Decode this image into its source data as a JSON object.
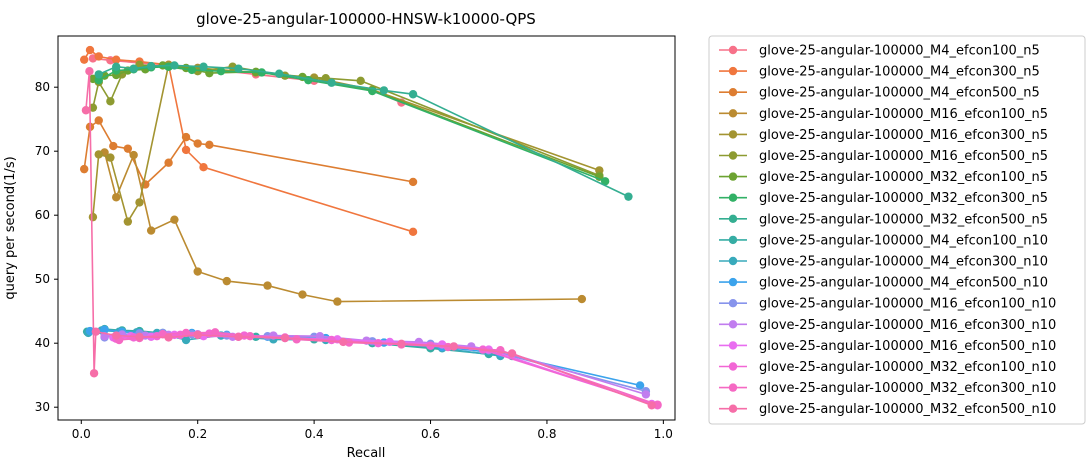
{
  "chart_data": {
    "type": "line",
    "title": "glove-25-angular-100000-HNSW-k10000-QPS",
    "xlabel": "Recall",
    "ylabel": "query per second(1/s)",
    "xlim": [
      -0.04,
      1.02
    ],
    "ylim": [
      28.0,
      88.0
    ],
    "xticks": [
      0.0,
      0.2,
      0.4,
      0.6,
      0.8,
      1.0
    ],
    "xtick_labels": [
      "0.0",
      "0.2",
      "0.4",
      "0.6",
      "0.8",
      "1.0"
    ],
    "yticks": [
      30,
      40,
      50,
      60,
      70,
      80
    ],
    "ytick_labels": [
      "30",
      "40",
      "50",
      "60",
      "70",
      "80"
    ],
    "grid": false,
    "legend_position": "outside-right",
    "series": [
      {
        "name": "glove-25-angular-100000_M4_efcon100_n5",
        "color": "#f77189",
        "x": [
          0.02,
          0.05,
          0.1,
          0.15,
          0.2,
          0.3,
          0.4,
          0.5,
          0.55
        ],
        "y": [
          84.5,
          84.2,
          83.8,
          83.5,
          83.0,
          82.0,
          81.0,
          79.5,
          77.6
        ]
      },
      {
        "name": "glove-25-angular-100000_M4_efcon300_n5",
        "color": "#f0763e",
        "x": [
          0.005,
          0.015,
          0.03,
          0.06,
          0.1,
          0.15,
          0.18,
          0.21,
          0.57
        ],
        "y": [
          84.3,
          85.8,
          84.8,
          84.3,
          84.0,
          83.5,
          70.2,
          67.5,
          57.4
        ]
      },
      {
        "name": "glove-25-angular-100000_M4_efcon500_n5",
        "color": "#dd7d31",
        "x": [
          0.005,
          0.015,
          0.03,
          0.055,
          0.08,
          0.11,
          0.15,
          0.18,
          0.2,
          0.22,
          0.57
        ],
        "y": [
          67.2,
          73.8,
          74.8,
          70.8,
          70.4,
          64.8,
          68.2,
          72.2,
          71.2,
          71.0,
          65.2
        ]
      },
      {
        "name": "glove-25-angular-100000_M16_efcon100_n5",
        "color": "#bb8b31",
        "x": [
          0.04,
          0.06,
          0.09,
          0.12,
          0.16,
          0.2,
          0.25,
          0.32,
          0.38,
          0.44,
          0.86
        ],
        "y": [
          69.8,
          62.8,
          69.4,
          57.6,
          59.3,
          51.2,
          49.7,
          49.0,
          47.6,
          46.5,
          46.9
        ]
      },
      {
        "name": "glove-25-angular-100000_M16_efcon300_n5",
        "color": "#a39431",
        "x": [
          0.02,
          0.03,
          0.05,
          0.08,
          0.1,
          0.15,
          0.2,
          0.3,
          0.4,
          0.5,
          0.89
        ],
        "y": [
          59.7,
          69.5,
          69.0,
          59.0,
          62.0,
          83.5,
          83.0,
          82.3,
          81.5,
          79.6,
          67.0
        ]
      },
      {
        "name": "glove-25-angular-100000_M16_efcon500_n5",
        "color": "#8d9b31",
        "x": [
          0.02,
          0.03,
          0.05,
          0.07,
          0.1,
          0.15,
          0.2,
          0.26,
          0.35,
          0.42,
          0.48,
          0.89
        ],
        "y": [
          76.8,
          80.8,
          77.8,
          82.0,
          83.5,
          83.2,
          82.5,
          83.2,
          81.8,
          81.4,
          81.0,
          66.2
        ]
      },
      {
        "name": "glove-25-angular-100000_M32_efcon100_n5",
        "color": "#6ca331",
        "x": [
          0.02,
          0.04,
          0.06,
          0.08,
          0.11,
          0.14,
          0.18,
          0.22,
          0.3,
          0.38,
          0.5,
          0.89
        ],
        "y": [
          81.3,
          81.8,
          81.9,
          82.6,
          82.8,
          83.4,
          83.0,
          82.2,
          82.4,
          81.6,
          79.5,
          66.0
        ]
      },
      {
        "name": "glove-25-angular-100000_M32_efcon300_n5",
        "color": "#32b166",
        "x": [
          0.03,
          0.06,
          0.09,
          0.12,
          0.15,
          0.19,
          0.24,
          0.31,
          0.39,
          0.5,
          0.9
        ],
        "y": [
          81.1,
          82.6,
          82.8,
          83.1,
          83.2,
          82.7,
          82.5,
          82.3,
          81.1,
          79.4,
          65.3
        ]
      },
      {
        "name": "glove-25-angular-100000_M32_efcon500_n5",
        "color": "#34ae91",
        "x": [
          0.03,
          0.06,
          0.09,
          0.12,
          0.16,
          0.21,
          0.27,
          0.34,
          0.43,
          0.52,
          0.57,
          0.94
        ],
        "y": [
          82.0,
          83.2,
          82.9,
          83.3,
          83.4,
          83.2,
          82.9,
          82.1,
          80.7,
          79.5,
          78.9,
          62.9
        ]
      },
      {
        "name": "glove-25-angular-100000_M4_efcon100_n10",
        "color": "#36ada4",
        "x": [
          0.01,
          0.04,
          0.07,
          0.1,
          0.14,
          0.18,
          0.24,
          0.3,
          0.4,
          0.5,
          0.6,
          0.7,
          0.74
        ],
        "y": [
          41.8,
          42.2,
          42.0,
          41.9,
          41.6,
          41.4,
          41.2,
          41.0,
          40.6,
          40.0,
          39.2,
          38.3,
          38.0
        ]
      },
      {
        "name": "glove-25-angular-100000_M4_efcon300_n10",
        "color": "#38aabb",
        "x": [
          0.012,
          0.035,
          0.065,
          0.095,
          0.13,
          0.18,
          0.24,
          0.33,
          0.42,
          0.52,
          0.62,
          0.72
        ],
        "y": [
          41.6,
          42.0,
          41.8,
          41.7,
          41.6,
          40.5,
          41.2,
          40.6,
          40.5,
          40.1,
          39.2,
          38.0
        ]
      },
      {
        "name": "glove-25-angular-100000_M4_efcon500_n10",
        "color": "#3ba3ec",
        "x": [
          0.015,
          0.04,
          0.07,
          0.1,
          0.14,
          0.19,
          0.25,
          0.32,
          0.42,
          0.52,
          0.62,
          0.72,
          0.96
        ],
        "y": [
          41.9,
          42.1,
          41.8,
          41.6,
          41.5,
          41.6,
          41.3,
          41.0,
          40.8,
          40.1,
          39.4,
          38.4,
          33.4
        ]
      },
      {
        "name": "glove-25-angular-100000_M16_efcon100_n10",
        "color": "#8794ec",
        "x": [
          0.04,
          0.07,
          0.1,
          0.14,
          0.19,
          0.25,
          0.32,
          0.4,
          0.5,
          0.6,
          0.7,
          0.97
        ],
        "y": [
          40.9,
          41.4,
          41.5,
          41.6,
          41.4,
          41.2,
          41.1,
          41.0,
          40.3,
          39.9,
          38.9,
          32.5
        ]
      },
      {
        "name": "glove-25-angular-100000_M16_efcon300_n10",
        "color": "#c17def",
        "x": [
          0.04,
          0.07,
          0.11,
          0.15,
          0.2,
          0.26,
          0.33,
          0.41,
          0.49,
          0.58,
          0.67,
          0.74,
          0.97
        ],
        "y": [
          41.1,
          41.3,
          41.2,
          41.3,
          41.4,
          41.0,
          41.2,
          41.1,
          40.4,
          40.2,
          39.5,
          38.3,
          32.0
        ]
      },
      {
        "name": "glove-25-angular-100000_M16_efcon500_n10",
        "color": "#e96df0",
        "x": [
          0.055,
          0.085,
          0.12,
          0.16,
          0.21,
          0.27,
          0.35,
          0.44,
          0.53,
          0.62,
          0.7,
          0.98
        ],
        "y": [
          40.9,
          41.1,
          41.0,
          41.3,
          41.1,
          41.0,
          40.8,
          40.6,
          40.2,
          39.8,
          39.0,
          30.5
        ]
      },
      {
        "name": "glove-25-angular-100000_M32_efcon100_n10",
        "color": "#f266d5",
        "x": [
          0.06,
          0.09,
          0.13,
          0.17,
          0.22,
          0.28,
          0.35,
          0.43,
          0.51,
          0.6,
          0.69,
          0.99
        ],
        "y": [
          40.7,
          40.9,
          41.1,
          41.3,
          41.5,
          41.2,
          40.9,
          40.5,
          40.0,
          39.6,
          39.0,
          30.3
        ]
      },
      {
        "name": "glove-25-angular-100000_M32_efcon300_n10",
        "color": "#f569c3",
        "x": [
          0.065,
          0.1,
          0.14,
          0.18,
          0.23,
          0.29,
          0.37,
          0.46,
          0.55,
          0.63,
          0.72,
          0.99
        ],
        "y": [
          40.5,
          40.8,
          41.4,
          41.6,
          41.7,
          41.1,
          40.6,
          40.1,
          39.8,
          39.4,
          38.9,
          30.4
        ]
      },
      {
        "name": "glove-25-angular-100000_M32_efcon500_n10",
        "color": "#f66ea8",
        "x": [
          0.008,
          0.014,
          0.022,
          0.025,
          0.06,
          0.1,
          0.15,
          0.2,
          0.27,
          0.35,
          0.45,
          0.55,
          0.64,
          0.74,
          0.98
        ],
        "y": [
          76.4,
          82.5,
          35.3,
          41.8,
          41.2,
          41.0,
          40.9,
          41.3,
          41.0,
          40.8,
          40.2,
          39.9,
          39.5,
          38.4,
          30.3
        ]
      }
    ]
  }
}
